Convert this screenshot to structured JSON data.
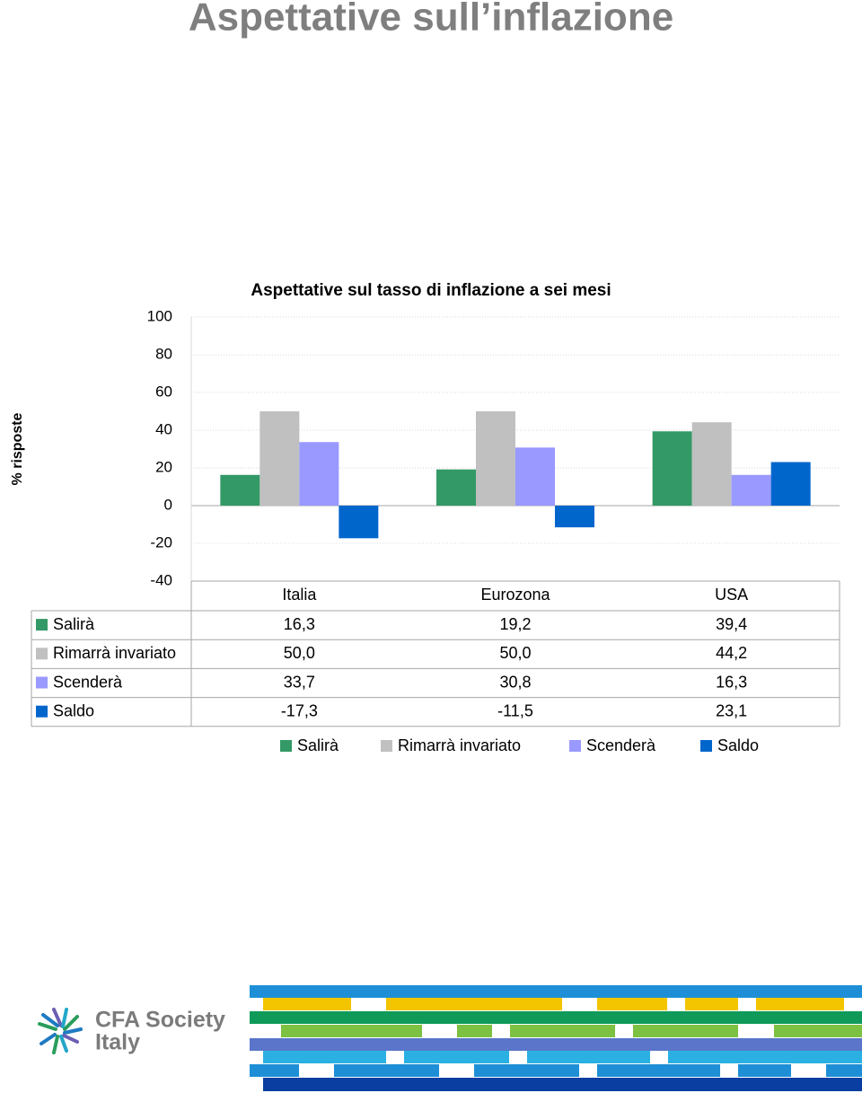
{
  "page_title": "Aspettative sull’inflazione",
  "chart_data": {
    "type": "bar",
    "title": "Aspettative sul tasso di inflazione a sei mesi",
    "y_label": "% risposte",
    "categories": [
      "Italia",
      "Eurozona",
      "USA"
    ],
    "series": [
      {
        "name": "Salirà",
        "color": "#339966",
        "values": [
          16.3,
          19.2,
          39.4
        ],
        "value_labels": [
          "16,3",
          "19,2",
          "39,4"
        ]
      },
      {
        "name": "Rimarrà invariato",
        "color": "#c0c0c0",
        "values": [
          50.0,
          50.0,
          44.2
        ],
        "value_labels": [
          "50,0",
          "50,0",
          "44,2"
        ]
      },
      {
        "name": "Scenderà",
        "color": "#9999ff",
        "values": [
          33.7,
          30.8,
          16.3
        ],
        "value_labels": [
          "33,7",
          "30,8",
          "16,3"
        ]
      },
      {
        "name": "Saldo",
        "color": "#0066cc",
        "values": [
          -17.3,
          -11.5,
          23.1
        ],
        "value_labels": [
          "-17,3",
          "-11,5",
          "23,1"
        ]
      }
    ],
    "ylim": [
      -40,
      100
    ],
    "yticks": [
      -40,
      -20,
      0,
      20,
      40,
      60,
      80,
      100
    ],
    "grid": true,
    "legend": "bottom",
    "data_table": true
  },
  "logo": {
    "line1": "CFA Society",
    "line2": "Italy"
  }
}
